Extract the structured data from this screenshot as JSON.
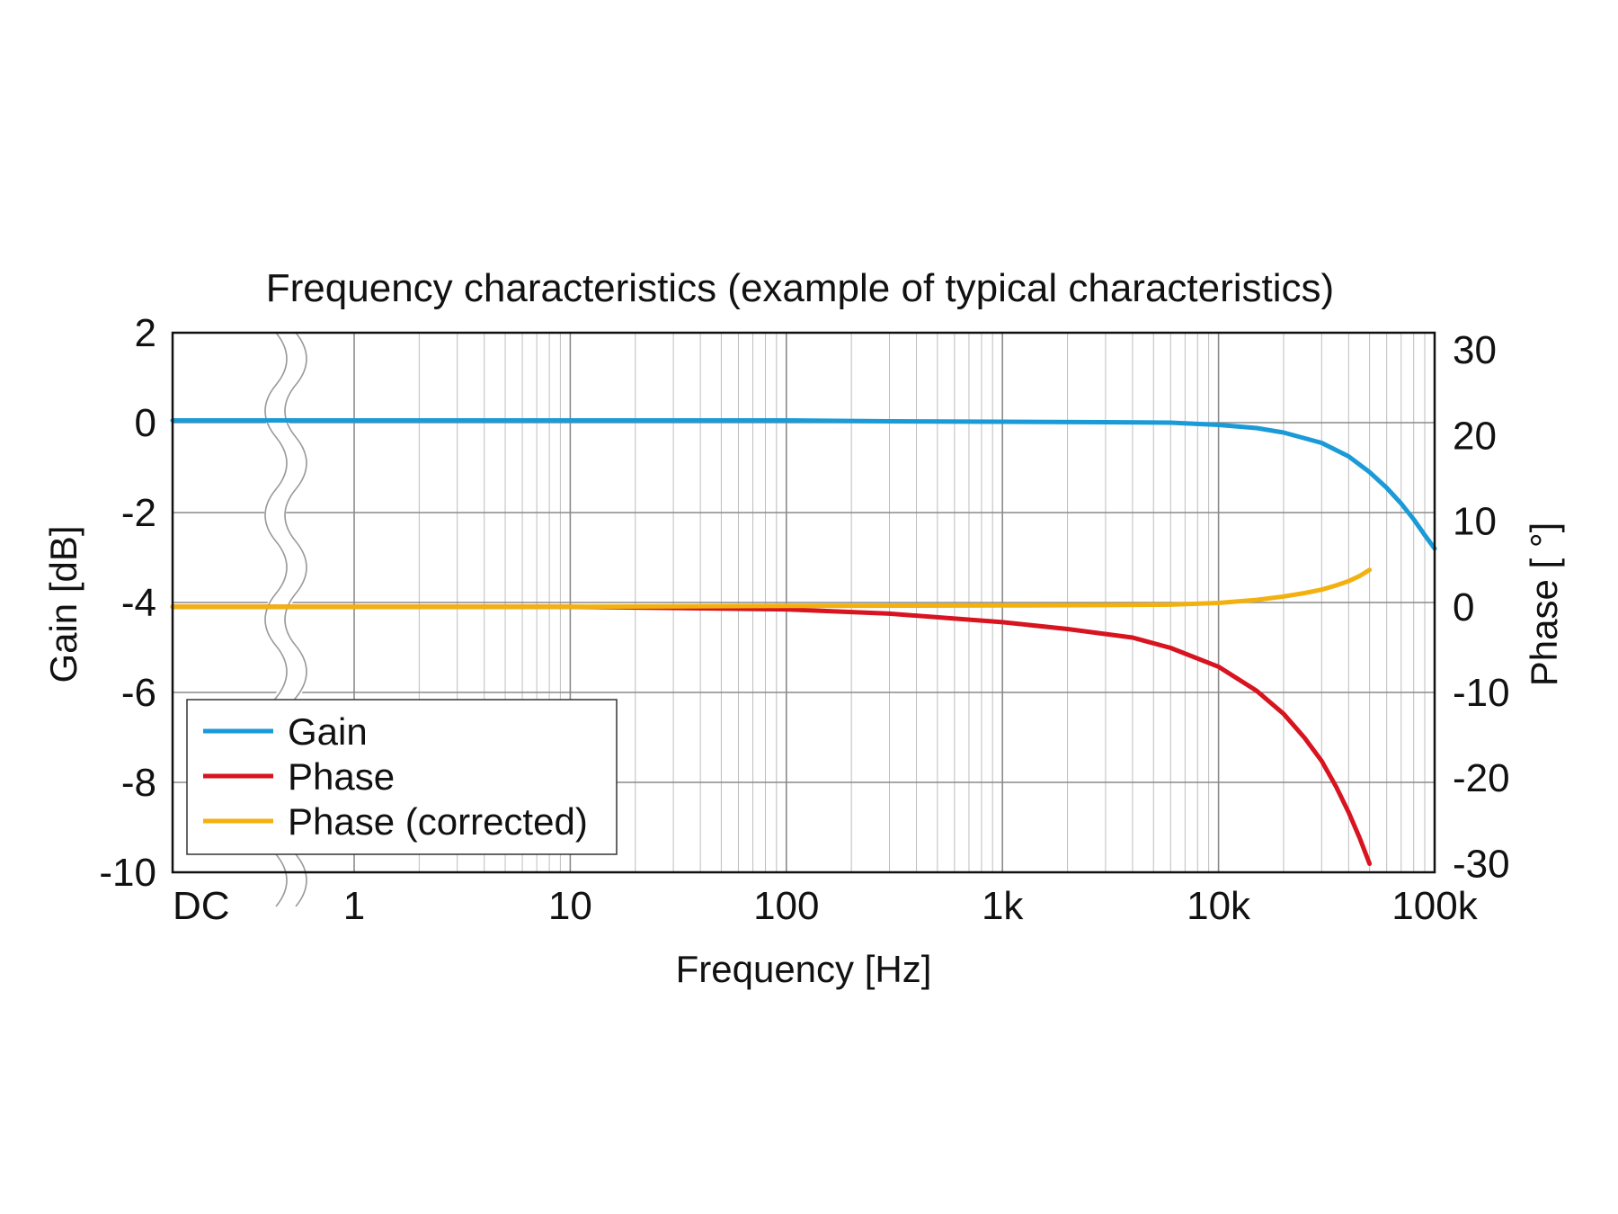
{
  "chart_data": {
    "type": "line",
    "title": "Frequency characteristics (example of typical characteristics)",
    "xlabel": "Frequency [Hz]",
    "ylabel": "Gain [dB]",
    "y2label": "Phase [ °]",
    "x_scale": "log",
    "x_axis_break": true,
    "grid": true,
    "legend_position": "bottom-left",
    "x_tick_labels": [
      "DC",
      "1",
      "10",
      "100",
      "1k",
      "10k",
      "100k"
    ],
    "x_tick_values": [
      0,
      1,
      10,
      100,
      1000,
      10000,
      100000
    ],
    "xlim": [
      0,
      100000
    ],
    "ylim": [
      -10,
      2
    ],
    "y_ticks": [
      2,
      0,
      -2,
      -4,
      -6,
      -8,
      -10
    ],
    "y2lim": [
      -31,
      32
    ],
    "y2_ticks": [
      30,
      20,
      10,
      0,
      -10,
      -20,
      -30
    ],
    "series": [
      {
        "name": "Gain",
        "axis": "left",
        "color": "#1a9bd7",
        "x": [
          0,
          1,
          10,
          100,
          300,
          1000,
          3000,
          6000,
          10000,
          15000,
          20000,
          30000,
          40000,
          50000,
          60000,
          70000,
          80000,
          90000,
          100000
        ],
        "y": [
          0.05,
          0.05,
          0.05,
          0.05,
          0.03,
          0.02,
          0.01,
          0.0,
          -0.05,
          -0.12,
          -0.22,
          -0.45,
          -0.75,
          -1.1,
          -1.45,
          -1.8,
          -2.15,
          -2.5,
          -2.8
        ]
      },
      {
        "name": "Phase",
        "axis": "right",
        "color": "#d7141f",
        "x": [
          0,
          1,
          10,
          100,
          300,
          1000,
          2000,
          4000,
          6000,
          10000,
          15000,
          20000,
          25000,
          30000,
          35000,
          40000,
          45000,
          50000
        ],
        "y": [
          0.0,
          0.0,
          0.0,
          -0.3,
          -0.8,
          -1.8,
          -2.6,
          -3.6,
          -4.8,
          -7.0,
          -9.8,
          -12.5,
          -15.3,
          -18.0,
          -21.0,
          -24.0,
          -27.0,
          -30.0
        ]
      },
      {
        "name": "Phase (corrected)",
        "axis": "right",
        "color": "#f2b10f",
        "x": [
          0,
          1,
          10,
          100,
          1000,
          3000,
          6000,
          10000,
          15000,
          20000,
          25000,
          30000,
          35000,
          40000,
          45000,
          50000
        ],
        "y": [
          0.0,
          0.0,
          0.0,
          0.1,
          0.15,
          0.2,
          0.25,
          0.45,
          0.8,
          1.2,
          1.6,
          2.0,
          2.5,
          3.0,
          3.6,
          4.3
        ]
      }
    ]
  }
}
